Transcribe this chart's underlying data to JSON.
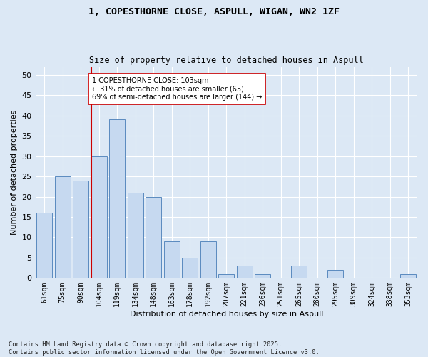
{
  "title_line1": "1, COPESTHORNE CLOSE, ASPULL, WIGAN, WN2 1ZF",
  "title_line2": "Size of property relative to detached houses in Aspull",
  "xlabel": "Distribution of detached houses by size in Aspull",
  "ylabel": "Number of detached properties",
  "categories": [
    "61sqm",
    "75sqm",
    "90sqm",
    "104sqm",
    "119sqm",
    "134sqm",
    "148sqm",
    "163sqm",
    "178sqm",
    "192sqm",
    "207sqm",
    "221sqm",
    "236sqm",
    "251sqm",
    "265sqm",
    "280sqm",
    "295sqm",
    "309sqm",
    "324sqm",
    "338sqm",
    "353sqm"
  ],
  "values": [
    16,
    25,
    24,
    30,
    39,
    21,
    20,
    9,
    5,
    9,
    1,
    3,
    1,
    0,
    3,
    0,
    2,
    0,
    0,
    0,
    1
  ],
  "bar_color": "#c6d9f0",
  "bar_edge_color": "#5a8abf",
  "vline_pos": 2.575,
  "vline_color": "#cc0000",
  "annotation_text": "1 COPESTHORNE CLOSE: 103sqm\n← 31% of detached houses are smaller (65)\n69% of semi-detached houses are larger (144) →",
  "ylim": [
    0,
    52
  ],
  "yticks": [
    0,
    5,
    10,
    15,
    20,
    25,
    30,
    35,
    40,
    45,
    50
  ],
  "bg_color": "#dce8f5",
  "grid_color": "#ffffff",
  "footnote": "Contains HM Land Registry data © Crown copyright and database right 2025.\nContains public sector information licensed under the Open Government Licence v3.0."
}
